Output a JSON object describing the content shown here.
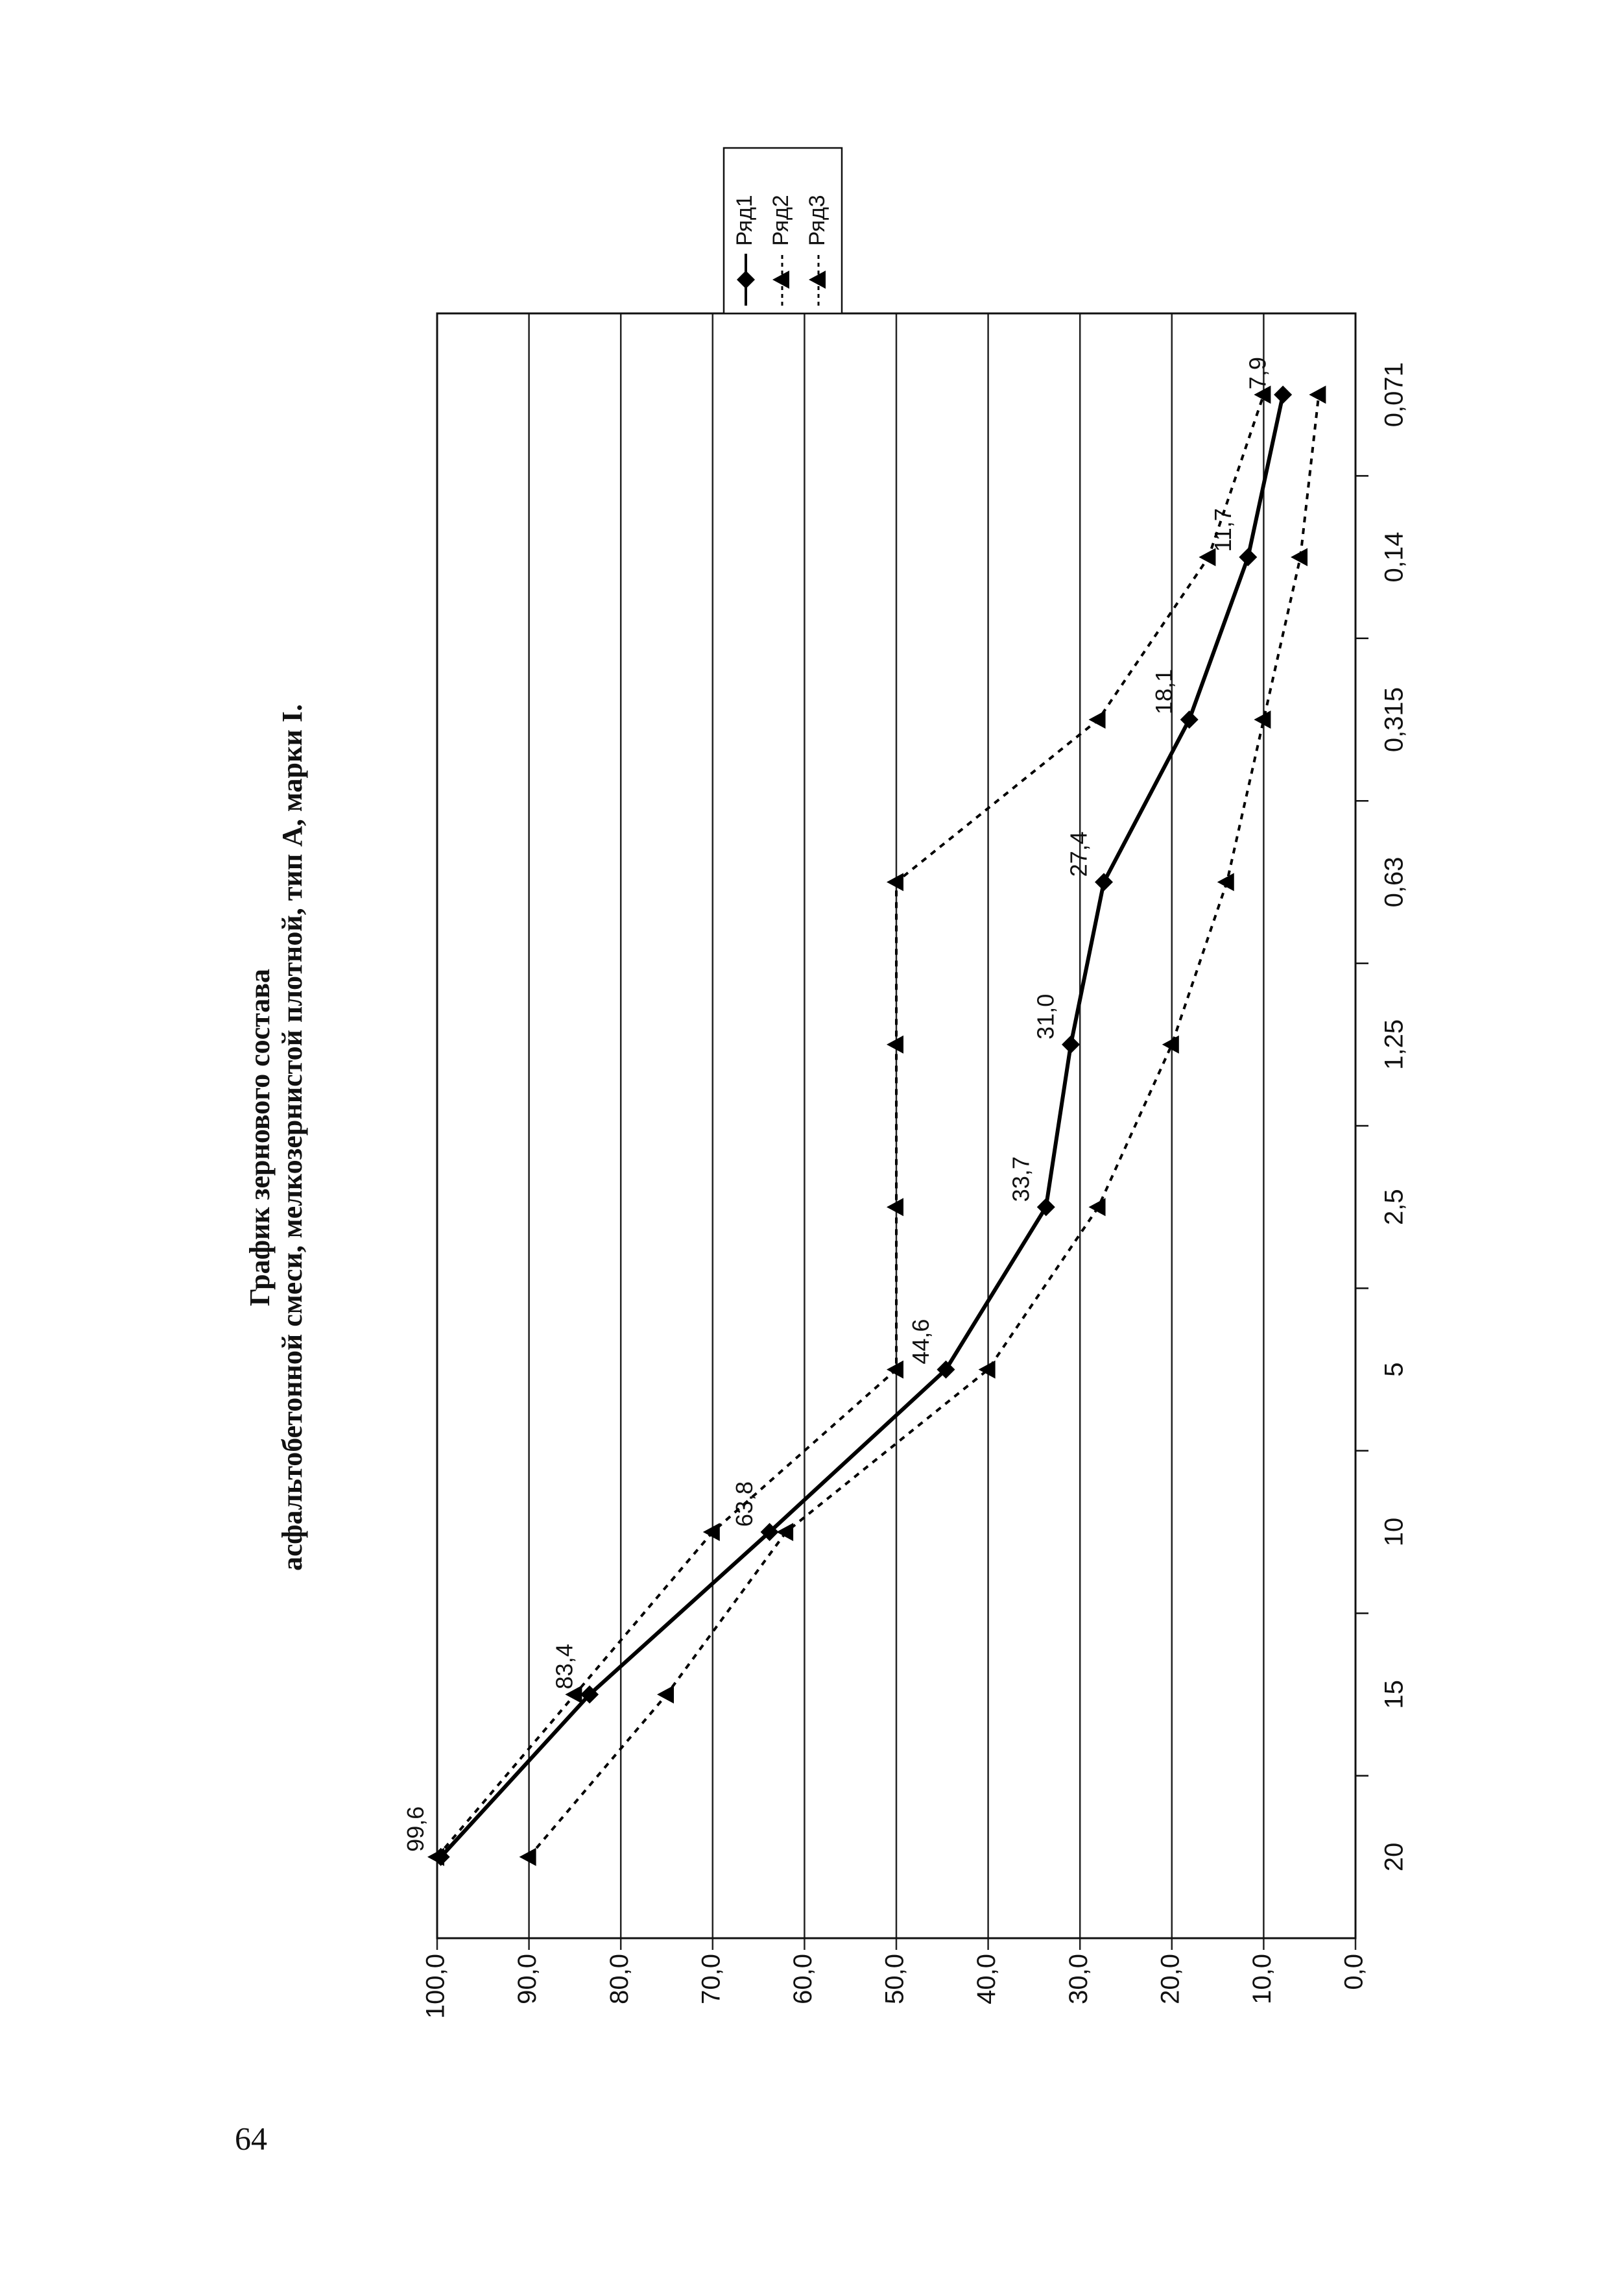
{
  "page_number": "64",
  "chart_data": {
    "type": "line",
    "title": "График зернового состава",
    "subtitle": "асфальтобетонной смеси, мелкозернистой плотной, тип А, марки I.",
    "categories": [
      "20",
      "15",
      "10",
      "5",
      "2,5",
      "1,25",
      "0,63",
      "0,315",
      "0,14",
      "0,071"
    ],
    "series": [
      {
        "name": "Ряд1",
        "color": "#000000",
        "marker": "diamond",
        "line_style": "solid",
        "values": [
          99.6,
          83.4,
          63.8,
          44.6,
          33.7,
          31.0,
          27.4,
          18.1,
          11.7,
          7.9
        ],
        "value_labels": [
          "99,6",
          "83,4",
          "63,8",
          "44,6",
          "33,7",
          "31,0",
          "27,4",
          "18,1",
          "11,7",
          "7,9"
        ]
      },
      {
        "name": "Ряд2",
        "color": "#000000",
        "marker": "triangle",
        "line_style": "dotted",
        "values": [
          90,
          75,
          62,
          40,
          28,
          20,
          14,
          10,
          6,
          4
        ]
      },
      {
        "name": "Ряд3",
        "color": "#000000",
        "marker": "triangle",
        "line_style": "dotted",
        "values": [
          100,
          85,
          70,
          50,
          50,
          50,
          50,
          28,
          16,
          10
        ]
      }
    ],
    "ylim": [
      0,
      100
    ],
    "yticks": [
      {
        "value": 0,
        "label": "0,0"
      },
      {
        "value": 10,
        "label": "10,0"
      },
      {
        "value": 20,
        "label": "20,0"
      },
      {
        "value": 30,
        "label": "30,0"
      },
      {
        "value": 40,
        "label": "40,0"
      },
      {
        "value": 50,
        "label": "50,0"
      },
      {
        "value": 60,
        "label": "60,0"
      },
      {
        "value": 70,
        "label": "70,0"
      },
      {
        "value": 80,
        "label": "80,0"
      },
      {
        "value": 90,
        "label": "90,0"
      },
      {
        "value": 100,
        "label": "100,0"
      }
    ],
    "grid": true,
    "legend": "right"
  }
}
